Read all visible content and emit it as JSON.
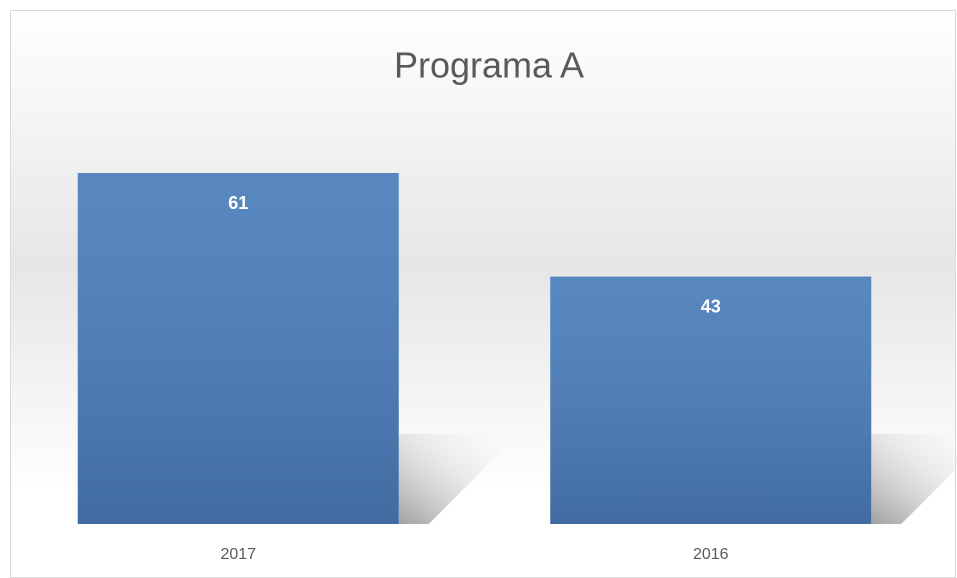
{
  "chart_data": {
    "type": "bar",
    "title": "Programa A",
    "categories": [
      "2017",
      "2016"
    ],
    "values": [
      61,
      43
    ],
    "color": "#4a7dbb"
  }
}
